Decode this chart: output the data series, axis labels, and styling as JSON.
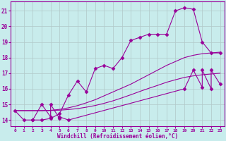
{
  "xlabel": "Windchill (Refroidissement éolien,°C)",
  "bg_color": "#c8ecec",
  "line_color": "#990099",
  "grid_color": "#b0c8c8",
  "xlim": [
    -0.5,
    23.5
  ],
  "ylim": [
    13.6,
    21.6
  ],
  "xticks": [
    0,
    1,
    2,
    3,
    4,
    5,
    6,
    7,
    8,
    9,
    10,
    11,
    12,
    13,
    14,
    15,
    16,
    17,
    18,
    19,
    20,
    21,
    22,
    23
  ],
  "yticks": [
    14,
    15,
    16,
    17,
    18,
    19,
    20,
    21
  ],
  "series": [
    {
      "x": [
        0,
        1,
        2,
        3,
        4,
        5,
        6,
        7,
        8,
        9,
        10,
        11,
        12,
        13,
        14,
        15,
        16,
        17,
        18,
        19,
        20,
        21,
        22,
        23
      ],
      "y": [
        14.6,
        14.0,
        14.0,
        14.0,
        14.1,
        14.4,
        15.6,
        16.5,
        15.8,
        17.3,
        17.5,
        17.3,
        18.0,
        19.1,
        19.3,
        19.5,
        19.5,
        19.5,
        21.0,
        21.2,
        21.1,
        19.0,
        18.3,
        18.3
      ],
      "marker": "D",
      "markersize": 2.5
    },
    {
      "x": [
        0,
        1,
        2,
        3,
        4,
        5,
        6,
        7,
        8,
        9,
        10,
        11,
        12,
        13,
        14,
        15,
        16,
        17,
        18,
        19,
        20,
        21,
        22,
        23
      ],
      "y": [
        14.6,
        14.6,
        14.6,
        14.6,
        14.62,
        14.68,
        14.78,
        14.92,
        15.1,
        15.3,
        15.55,
        15.8,
        16.05,
        16.3,
        16.6,
        16.9,
        17.2,
        17.5,
        17.75,
        18.0,
        18.15,
        18.25,
        18.3,
        18.35
      ],
      "marker": null,
      "markersize": 0
    },
    {
      "x": [
        0,
        1,
        2,
        3,
        4,
        5,
        6,
        7,
        8,
        9,
        10,
        11,
        12,
        13,
        14,
        15,
        16,
        17,
        18,
        19,
        20,
        21,
        22,
        23
      ],
      "y": [
        14.6,
        14.6,
        14.6,
        14.6,
        14.61,
        14.63,
        14.67,
        14.73,
        14.82,
        14.93,
        15.07,
        15.23,
        15.42,
        15.62,
        15.83,
        16.03,
        16.22,
        16.42,
        16.58,
        16.73,
        16.83,
        16.9,
        16.95,
        17.0
      ],
      "marker": null,
      "markersize": 0
    },
    {
      "x": [
        2,
        3,
        4,
        4,
        5,
        5,
        6,
        19,
        20,
        21,
        21,
        22,
        22,
        23
      ],
      "y": [
        14.0,
        15.0,
        14.2,
        15.0,
        14.1,
        14.2,
        14.0,
        16.0,
        17.2,
        16.1,
        17.2,
        16.0,
        17.2,
        16.3
      ],
      "marker": "D",
      "markersize": 2.5
    }
  ]
}
